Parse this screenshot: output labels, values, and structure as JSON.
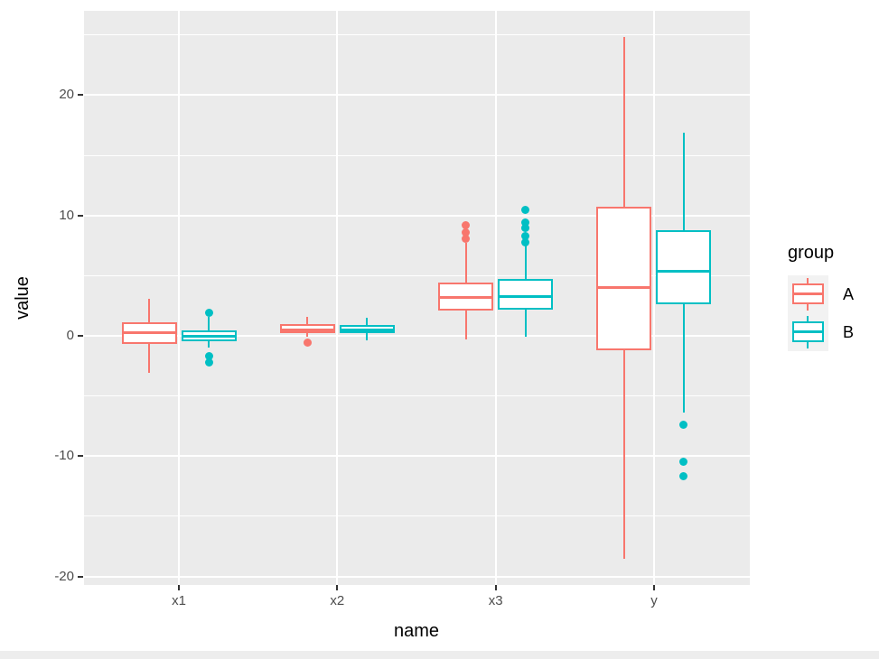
{
  "colors": {
    "group_a": "#F8766D",
    "group_b": "#00BFC4",
    "panel_background": "#EBEBEB",
    "gridline": "#FFFFFF",
    "tick_text": "#4D4D4D"
  },
  "chart_data": {
    "type": "boxplot",
    "title": "",
    "xlabel": "name",
    "ylabel": "value",
    "categories": [
      "x1",
      "x2",
      "x3",
      "y"
    ],
    "y_ticks": [
      20,
      10,
      0,
      -10,
      -20
    ],
    "y_minor_ticks": [
      25,
      15,
      5,
      -5,
      -15
    ],
    "ylim": [
      -21,
      27
    ],
    "grid": true,
    "legend": {
      "title": "group",
      "position": "right",
      "entries": [
        {
          "label": "A",
          "color": "#F8766D"
        },
        {
          "label": "B",
          "color": "#00BFC4"
        }
      ]
    },
    "series": [
      {
        "name": "A",
        "color": "#F8766D",
        "boxes": [
          {
            "category": "x1",
            "whisker_low": -3.1,
            "q1": -0.7,
            "median": 0.3,
            "q3": 1.1,
            "whisker_high": 3.1,
            "outliers": []
          },
          {
            "category": "x2",
            "whisker_low": -0.1,
            "q1": 0.2,
            "median": 0.5,
            "q3": 1.0,
            "whisker_high": 1.6,
            "outliers": [
              -0.6
            ]
          },
          {
            "category": "x3",
            "whisker_low": -0.3,
            "q1": 2.1,
            "median": 3.2,
            "q3": 4.4,
            "whisker_high": 7.7,
            "outliers": [
              8.1,
              8.6,
              9.2
            ]
          },
          {
            "category": "y",
            "whisker_low": -18.5,
            "q1": -1.2,
            "median": 4.0,
            "q3": 10.7,
            "whisker_high": 24.8,
            "outliers": []
          }
        ]
      },
      {
        "name": "B",
        "color": "#00BFC4",
        "boxes": [
          {
            "category": "x1",
            "whisker_low": -1.0,
            "q1": -0.45,
            "median": 0.0,
            "q3": 0.45,
            "whisker_high": 1.6,
            "outliers": [
              1.95,
              -1.7,
              -2.2
            ]
          },
          {
            "category": "x2",
            "whisker_low": -0.4,
            "q1": 0.2,
            "median": 0.5,
            "q3": 0.9,
            "whisker_high": 1.5,
            "outliers": []
          },
          {
            "category": "x3",
            "whisker_low": -0.1,
            "q1": 2.2,
            "median": 3.3,
            "q3": 4.7,
            "whisker_high": 7.7,
            "outliers": [
              7.8,
              8.3,
              9.0,
              9.4,
              10.5
            ]
          },
          {
            "category": "y",
            "whisker_low": -6.4,
            "q1": 2.6,
            "median": 5.4,
            "q3": 8.8,
            "whisker_high": 16.9,
            "outliers": [
              -7.4,
              -10.5,
              -11.7
            ]
          }
        ]
      }
    ]
  }
}
